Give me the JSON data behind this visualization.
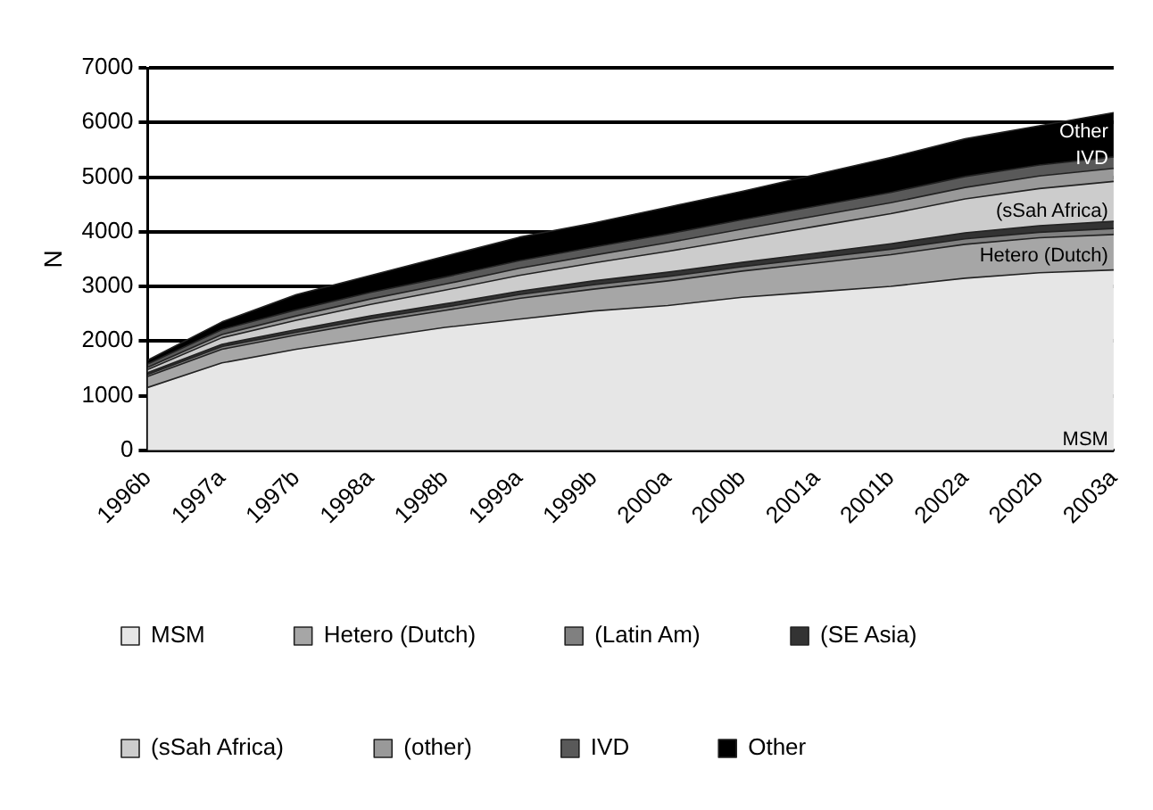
{
  "chart_data": {
    "type": "area",
    "stacked": true,
    "ylabel": "N",
    "categories": [
      "1996b",
      "1997a",
      "1997b",
      "1998a",
      "1998b",
      "1999a",
      "1999b",
      "2000a",
      "2000b",
      "2001a",
      "2001b",
      "2002a",
      "2002b",
      "2003a"
    ],
    "series": [
      {
        "name": "MSM",
        "color": "#e6e6e6",
        "values": [
          1150,
          1600,
          1850,
          2050,
          2250,
          2400,
          2550,
          2650,
          2800,
          2900,
          3000,
          3150,
          3250,
          3300
        ]
      },
      {
        "name": "Hetero (Dutch)",
        "color": "#a6a6a6",
        "values": [
          200,
          250,
          260,
          300,
          310,
          380,
          400,
          450,
          480,
          530,
          580,
          620,
          640,
          650
        ]
      },
      {
        "name": "(Latin Am)",
        "color": "#808080",
        "values": [
          40,
          50,
          50,
          60,
          60,
          70,
          80,
          80,
          80,
          90,
          100,
          100,
          100,
          110
        ]
      },
      {
        "name": "(SE Asia)",
        "color": "#333333",
        "values": [
          30,
          40,
          50,
          50,
          60,
          60,
          70,
          80,
          80,
          90,
          100,
          110,
          120,
          130
        ]
      },
      {
        "name": "(sSah Africa)",
        "color": "#cccccc",
        "values": [
          60,
          120,
          170,
          210,
          250,
          290,
          330,
          380,
          430,
          490,
          550,
          620,
          680,
          730
        ]
      },
      {
        "name": "(other)",
        "color": "#999999",
        "values": [
          40,
          60,
          80,
          100,
          110,
          130,
          140,
          160,
          180,
          190,
          200,
          210,
          230,
          240
        ]
      },
      {
        "name": "IVD",
        "color": "#595959",
        "values": [
          60,
          90,
          110,
          120,
          130,
          140,
          150,
          160,
          170,
          180,
          190,
          200,
          200,
          210
        ]
      },
      {
        "name": "Other",
        "color": "#000000",
        "values": [
          70,
          140,
          280,
          310,
          380,
          430,
          440,
          490,
          520,
          580,
          640,
          690,
          720,
          810
        ]
      }
    ],
    "ylim": [
      0,
      7000
    ],
    "yticks": [
      0,
      1000,
      2000,
      3000,
      4000,
      5000,
      6000,
      7000
    ],
    "grid": "y",
    "legend": "bottom",
    "annotations": [
      {
        "text": "Other",
        "x": "2003a",
        "y": 5830
      },
      {
        "text": "IVD",
        "x": "2003a",
        "y": 5330
      },
      {
        "text": "(sSah Africa)",
        "x": "2003a",
        "y": 4380
      },
      {
        "text": "Hetero (Dutch)",
        "x": "2003a",
        "y": 3550
      },
      {
        "text": "MSM",
        "x": "2003a",
        "y": 200
      }
    ]
  }
}
